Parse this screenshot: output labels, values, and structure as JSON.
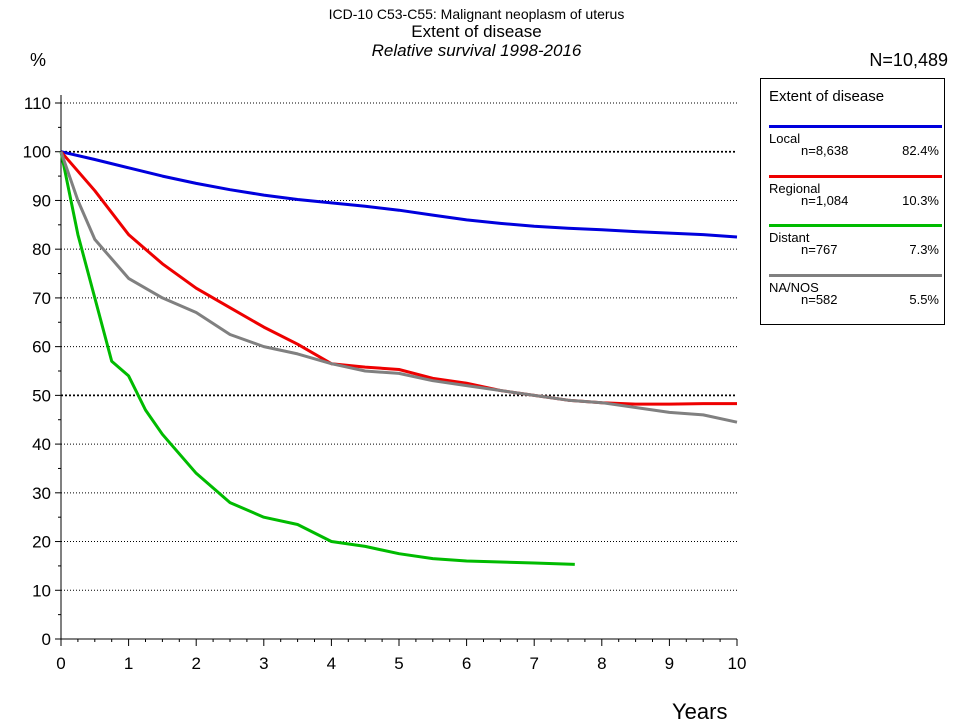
{
  "header": {
    "title_line1": "ICD-10 C53-C55: Malignant neoplasm of uterus",
    "title_line2": "Extent of disease",
    "title_line3": "Relative survival 1998-2016",
    "y_unit": "%",
    "n_total": "N=10,489",
    "x_label": "Years"
  },
  "legend": {
    "title": "Extent of disease",
    "items": [
      {
        "name": "Local",
        "n": "n=8,638",
        "pct": "82.4%",
        "color": "#0000dd"
      },
      {
        "name": "Regional",
        "n": "n=1,084",
        "pct": "10.3%",
        "color": "#ee0000"
      },
      {
        "name": "Distant",
        "n": "n=767",
        "pct": "7.3%",
        "color": "#00bb00"
      },
      {
        "name": "NA/NOS",
        "n": "n=582",
        "pct": "5.5%",
        "color": "#808080"
      }
    ]
  },
  "chart_data": {
    "type": "line",
    "title": "Extent of disease",
    "subtitle": "Relative survival 1998-2016",
    "xlabel": "Years",
    "ylabel": "%",
    "xlim": [
      0,
      10
    ],
    "ylim": [
      0,
      110
    ],
    "x_ticks": [
      0,
      1,
      2,
      3,
      4,
      5,
      6,
      7,
      8,
      9,
      10
    ],
    "y_ticks": [
      0,
      10,
      20,
      30,
      40,
      50,
      60,
      70,
      80,
      90,
      100,
      110
    ],
    "grid": "horizontal dotted",
    "legend_position": "right",
    "series": [
      {
        "name": "Local",
        "color": "#0000dd",
        "x": [
          0,
          0.5,
          1,
          1.5,
          2,
          2.5,
          3,
          3.5,
          4,
          4.5,
          5,
          5.5,
          6,
          6.5,
          7,
          7.5,
          8,
          8.5,
          9,
          9.5,
          10
        ],
        "y": [
          100,
          98.4,
          96.7,
          95,
          93.5,
          92.2,
          91.1,
          90.2,
          89.5,
          88.8,
          88,
          87,
          86,
          85.3,
          84.7,
          84.3,
          84,
          83.6,
          83.3,
          83,
          82.5
        ]
      },
      {
        "name": "Regional",
        "color": "#ee0000",
        "x": [
          0,
          0.5,
          1,
          1.5,
          2,
          2.5,
          3,
          3.5,
          4,
          4.5,
          5,
          5.5,
          6,
          6.5,
          7,
          7.5,
          8,
          8.5,
          9,
          9.5,
          10
        ],
        "y": [
          100,
          92,
          83,
          77,
          72,
          68,
          64,
          60.5,
          56.5,
          55.8,
          55.3,
          53.5,
          52.5,
          51,
          50,
          49,
          48.5,
          48.2,
          48.2,
          48.3,
          48.3
        ]
      },
      {
        "name": "Distant",
        "color": "#00bb00",
        "x": [
          0,
          0.25,
          0.5,
          0.75,
          1,
          1.25,
          1.5,
          2,
          2.5,
          3,
          3.5,
          4,
          4.5,
          5,
          5.5,
          6,
          6.5,
          7,
          7.6
        ],
        "y": [
          100,
          83,
          70,
          57,
          54,
          47,
          42,
          34,
          28,
          25,
          23.5,
          20,
          19,
          17.5,
          16.5,
          16,
          15.8,
          15.6,
          15.3
        ]
      },
      {
        "name": "NA/NOS",
        "color": "#808080",
        "x": [
          0,
          0.25,
          0.5,
          0.75,
          1,
          1.5,
          2,
          2.5,
          3,
          3.5,
          4,
          4.5,
          5,
          5.5,
          6,
          6.5,
          7,
          7.5,
          8,
          8.5,
          9,
          9.5,
          10
        ],
        "y": [
          100,
          90,
          82,
          78,
          74,
          70,
          67,
          62.5,
          60,
          58.5,
          56.5,
          55,
          54.5,
          53,
          52,
          51,
          50,
          49,
          48.5,
          47.5,
          46.5,
          46,
          44.5
        ]
      }
    ]
  }
}
